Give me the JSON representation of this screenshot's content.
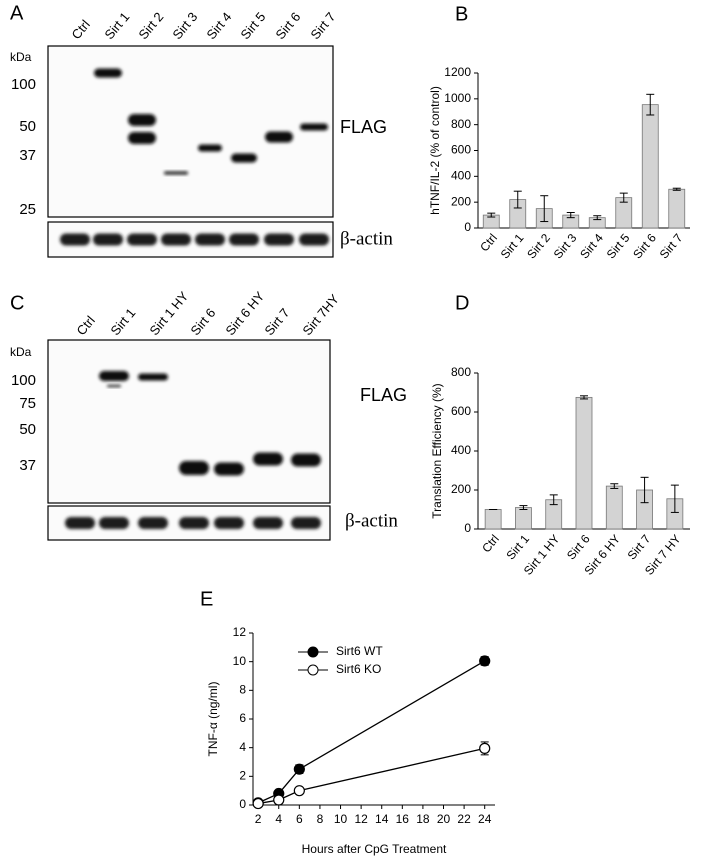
{
  "blots": [
    {
      "panel_label": "A",
      "lanes": [
        "Ctrl",
        "Sirt 1",
        "Sirt 2",
        "Sirt 3",
        "Sirt 4",
        "Sirt 5",
        "Sirt 6",
        "Sirt 7"
      ],
      "kda_label": "kDa",
      "markers": [
        100,
        50,
        37,
        25
      ],
      "labels": [
        "FLAG",
        "β-actin"
      ]
    },
    {
      "panel_label": "C",
      "lanes": [
        "Ctrl",
        "Sirt 1",
        "Sirt 1 HY",
        "Sirt 6",
        "Sirt 6 HY",
        "Sirt 7",
        "Sirt 7HY"
      ],
      "kda_label": "kDa",
      "markers": [
        100,
        75,
        50,
        37
      ],
      "labels": [
        "FLAG",
        "β-actin"
      ]
    }
  ],
  "chart_data": [
    {
      "type": "bar",
      "panel_label": "B",
      "y_label": "hTNF/IL-2 (% of control)",
      "categories": [
        "Ctrl",
        "Sirt 1",
        "Sirt 2",
        "Sirt 3",
        "Sirt 4",
        "Sirt 5",
        "Sirt 6",
        "Sirt 7"
      ],
      "values": [
        100,
        220,
        150,
        100,
        80,
        235,
        955,
        300
      ],
      "errors": [
        15,
        65,
        100,
        20,
        15,
        35,
        80,
        8
      ],
      "color": "#d3d3d3",
      "ylim": [
        0,
        1200
      ],
      "yticks": [
        0,
        200,
        400,
        600,
        800,
        1000,
        1200
      ]
    },
    {
      "type": "bar",
      "panel_label": "D",
      "y_label": "Translation Efficiency (%)",
      "categories": [
        "Ctrl",
        "Sirt 1",
        "Sirt 1 HY",
        "Sirt 6",
        "Sirt 6 HY",
        "Sirt 7",
        "Sirt 7 HY"
      ],
      "values": [
        100,
        110,
        150,
        675,
        220,
        200,
        155
      ],
      "errors": [
        0,
        10,
        25,
        8,
        12,
        65,
        70
      ],
      "color": "#d3d3d3",
      "ylim": [
        0,
        800
      ],
      "yticks": [
        0,
        200,
        400,
        600,
        800
      ]
    },
    {
      "type": "line",
      "panel_label": "E",
      "x_label": "Hours after CpG Treatment",
      "y_label": "TNF-α (ng/ml)",
      "x": [
        2,
        4,
        6,
        24
      ],
      "series": [
        {
          "name": "Sirt6 WT",
          "color": "#000000",
          "marker_fill": "#000000",
          "values": [
            0.15,
            0.8,
            2.5,
            10.05
          ],
          "errors": [
            0.05,
            0.1,
            0.3,
            0.3
          ]
        },
        {
          "name": "Sirt6 KO",
          "color": "#000000",
          "marker_fill": "#ffffff",
          "values": [
            0.1,
            0.35,
            1.0,
            3.95
          ],
          "errors": [
            0.05,
            0.05,
            0.1,
            0.45
          ]
        }
      ],
      "xlim": [
        1.5,
        25
      ],
      "xticks": [
        2,
        4,
        6,
        8,
        10,
        12,
        14,
        16,
        18,
        20,
        22,
        24
      ],
      "ylim": [
        0,
        12
      ],
      "yticks": [
        0,
        2,
        4,
        6,
        8,
        10,
        12
      ],
      "legend": "upper-left"
    }
  ]
}
